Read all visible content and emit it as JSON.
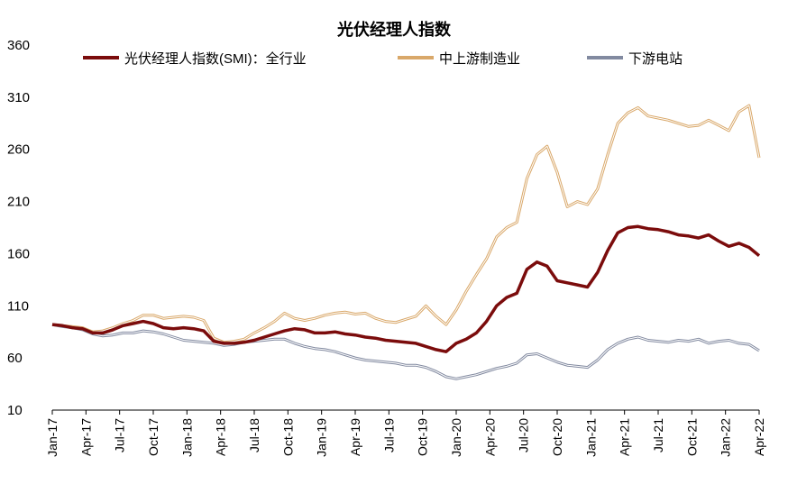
{
  "chart_data": {
    "type": "line",
    "title": "光伏经理人指数",
    "xlabel": "",
    "ylabel": "",
    "ylim": [
      10,
      360
    ],
    "yticks": [
      10,
      60,
      110,
      160,
      210,
      260,
      310,
      360
    ],
    "x_tick_labels": [
      "Jan-17",
      "Apr-17",
      "Jul-17",
      "Oct-17",
      "Jan-18",
      "Apr-18",
      "Jul-18",
      "Oct-18",
      "Jan-19",
      "Apr-19",
      "Jul-19",
      "Oct-19",
      "Jan-20",
      "Apr-20",
      "Jul-20",
      "Oct-20",
      "Jan-21",
      "Apr-21",
      "Jul-21",
      "Oct-21",
      "Jan-22",
      "Apr-22"
    ],
    "legend_position": "top",
    "grid": false,
    "series": [
      {
        "name": "光伏经理人指数(SMI)：全行业",
        "color": "#7b0c0c",
        "points": [
          [
            0,
            92
          ],
          [
            1,
            91
          ],
          [
            2,
            89
          ],
          [
            3,
            88
          ],
          [
            4,
            84
          ],
          [
            5,
            84
          ],
          [
            6,
            87
          ],
          [
            7,
            91
          ],
          [
            8,
            93
          ],
          [
            9,
            95
          ],
          [
            10,
            93
          ],
          [
            11,
            89
          ],
          [
            12,
            88
          ],
          [
            13,
            89
          ],
          [
            14,
            88
          ],
          [
            15,
            86
          ],
          [
            16,
            76
          ],
          [
            17,
            74
          ],
          [
            18,
            74
          ],
          [
            19,
            75
          ],
          [
            20,
            77
          ],
          [
            21,
            80
          ],
          [
            22,
            83
          ],
          [
            23,
            86
          ],
          [
            24,
            88
          ],
          [
            25,
            87
          ],
          [
            26,
            84
          ],
          [
            27,
            84
          ],
          [
            28,
            85
          ],
          [
            29,
            83
          ],
          [
            30,
            82
          ],
          [
            31,
            80
          ],
          [
            32,
            79
          ],
          [
            33,
            77
          ],
          [
            34,
            76
          ],
          [
            35,
            75
          ],
          [
            36,
            74
          ],
          [
            37,
            71
          ],
          [
            38,
            68
          ],
          [
            39,
            66
          ],
          [
            40,
            74
          ],
          [
            41,
            78
          ],
          [
            42,
            84
          ],
          [
            43,
            95
          ],
          [
            44,
            110
          ],
          [
            45,
            118
          ],
          [
            46,
            122
          ],
          [
            47,
            145
          ],
          [
            48,
            152
          ],
          [
            49,
            148
          ],
          [
            50,
            134
          ],
          [
            51,
            132
          ],
          [
            52,
            130
          ],
          [
            53,
            128
          ],
          [
            54,
            142
          ],
          [
            55,
            163
          ],
          [
            56,
            180
          ],
          [
            57,
            185
          ],
          [
            58,
            186
          ],
          [
            59,
            184
          ],
          [
            60,
            183
          ],
          [
            61,
            181
          ],
          [
            62,
            178
          ],
          [
            63,
            177
          ],
          [
            64,
            175
          ],
          [
            65,
            178
          ],
          [
            66,
            172
          ],
          [
            67,
            167
          ],
          [
            68,
            170
          ],
          [
            69,
            166
          ],
          [
            70,
            158
          ]
        ]
      },
      {
        "name": "中上游制造业",
        "color": "#d9a86a",
        "points": [
          [
            0,
            92
          ],
          [
            1,
            91
          ],
          [
            2,
            90
          ],
          [
            3,
            89
          ],
          [
            4,
            85
          ],
          [
            5,
            86
          ],
          [
            6,
            89
          ],
          [
            7,
            93
          ],
          [
            8,
            96
          ],
          [
            9,
            101
          ],
          [
            10,
            101
          ],
          [
            11,
            98
          ],
          [
            12,
            99
          ],
          [
            13,
            100
          ],
          [
            14,
            99
          ],
          [
            15,
            96
          ],
          [
            16,
            79
          ],
          [
            17,
            75
          ],
          [
            18,
            76
          ],
          [
            19,
            78
          ],
          [
            20,
            84
          ],
          [
            21,
            89
          ],
          [
            22,
            95
          ],
          [
            23,
            103
          ],
          [
            24,
            98
          ],
          [
            25,
            96
          ],
          [
            26,
            98
          ],
          [
            27,
            101
          ],
          [
            28,
            103
          ],
          [
            29,
            104
          ],
          [
            30,
            102
          ],
          [
            31,
            103
          ],
          [
            32,
            98
          ],
          [
            33,
            95
          ],
          [
            34,
            94
          ],
          [
            35,
            97
          ],
          [
            36,
            100
          ],
          [
            37,
            110
          ],
          [
            38,
            100
          ],
          [
            39,
            92
          ],
          [
            40,
            106
          ],
          [
            41,
            124
          ],
          [
            42,
            140
          ],
          [
            43,
            155
          ],
          [
            44,
            176
          ],
          [
            45,
            185
          ],
          [
            46,
            190
          ],
          [
            47,
            232
          ],
          [
            48,
            255
          ],
          [
            49,
            263
          ],
          [
            50,
            238
          ],
          [
            51,
            205
          ],
          [
            52,
            210
          ],
          [
            53,
            207
          ],
          [
            54,
            222
          ],
          [
            55,
            255
          ],
          [
            56,
            285
          ],
          [
            57,
            295
          ],
          [
            58,
            300
          ],
          [
            59,
            292
          ],
          [
            60,
            290
          ],
          [
            61,
            288
          ],
          [
            62,
            285
          ],
          [
            63,
            282
          ],
          [
            64,
            283
          ],
          [
            65,
            288
          ],
          [
            66,
            283
          ],
          [
            67,
            278
          ],
          [
            68,
            296
          ],
          [
            69,
            302
          ],
          [
            70,
            252
          ]
        ]
      },
      {
        "name": "下游电站",
        "color": "#828aa0",
        "points": [
          [
            0,
            92
          ],
          [
            1,
            90
          ],
          [
            2,
            89
          ],
          [
            3,
            87
          ],
          [
            4,
            83
          ],
          [
            5,
            81
          ],
          [
            6,
            82
          ],
          [
            7,
            84
          ],
          [
            8,
            84
          ],
          [
            9,
            86
          ],
          [
            10,
            85
          ],
          [
            11,
            83
          ],
          [
            12,
            80
          ],
          [
            13,
            77
          ],
          [
            14,
            76
          ],
          [
            15,
            75
          ],
          [
            16,
            74
          ],
          [
            17,
            72
          ],
          [
            18,
            73
          ],
          [
            19,
            75
          ],
          [
            20,
            76
          ],
          [
            21,
            77
          ],
          [
            22,
            78
          ],
          [
            23,
            78
          ],
          [
            24,
            74
          ],
          [
            25,
            71
          ],
          [
            26,
            69
          ],
          [
            27,
            68
          ],
          [
            28,
            66
          ],
          [
            29,
            63
          ],
          [
            30,
            60
          ],
          [
            31,
            58
          ],
          [
            32,
            57
          ],
          [
            33,
            56
          ],
          [
            34,
            55
          ],
          [
            35,
            53
          ],
          [
            36,
            53
          ],
          [
            37,
            51
          ],
          [
            38,
            47
          ],
          [
            39,
            42
          ],
          [
            40,
            40
          ],
          [
            41,
            42
          ],
          [
            42,
            44
          ],
          [
            43,
            47
          ],
          [
            44,
            50
          ],
          [
            45,
            52
          ],
          [
            46,
            55
          ],
          [
            47,
            63
          ],
          [
            48,
            64
          ],
          [
            49,
            60
          ],
          [
            50,
            56
          ],
          [
            51,
            53
          ],
          [
            52,
            52
          ],
          [
            53,
            51
          ],
          [
            54,
            58
          ],
          [
            55,
            68
          ],
          [
            56,
            74
          ],
          [
            57,
            78
          ],
          [
            58,
            80
          ],
          [
            59,
            77
          ],
          [
            60,
            76
          ],
          [
            61,
            75
          ],
          [
            62,
            77
          ],
          [
            63,
            76
          ],
          [
            64,
            78
          ],
          [
            65,
            74
          ],
          [
            66,
            76
          ],
          [
            67,
            77
          ],
          [
            68,
            74
          ],
          [
            69,
            73
          ],
          [
            70,
            67
          ]
        ]
      }
    ]
  }
}
